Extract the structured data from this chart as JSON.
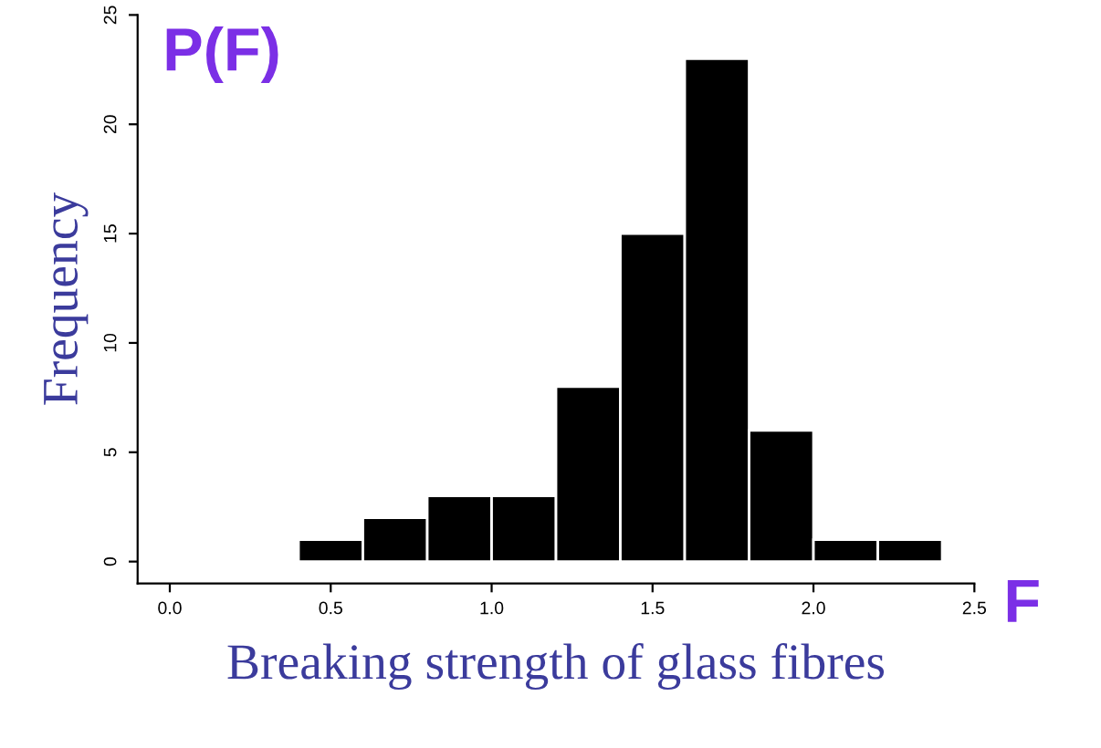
{
  "chart_data": {
    "type": "histogram",
    "xlabel": "Breaking strength of glass fibres",
    "ylabel": "Frequency",
    "annotations": [
      "P(F)",
      "F"
    ],
    "bins": [
      0.4,
      0.6,
      0.8,
      1.0,
      1.2,
      1.4,
      1.6,
      1.8,
      2.0,
      2.2,
      2.4
    ],
    "values": [
      1,
      2,
      3,
      3,
      8,
      15,
      23,
      6,
      1,
      1
    ],
    "color": "#000000",
    "xlim": [
      -0.1,
      2.5
    ],
    "ylim": [
      -1,
      25
    ],
    "xticks": [
      {
        "value": 0,
        "label": "0.0"
      },
      0.5,
      {
        "value": 1,
        "label": "1.0"
      },
      1.5,
      {
        "value": 2,
        "label": "2.0"
      },
      2.5
    ],
    "yticks": [
      0,
      5,
      10,
      15,
      20,
      25
    ],
    "grid": false
  }
}
